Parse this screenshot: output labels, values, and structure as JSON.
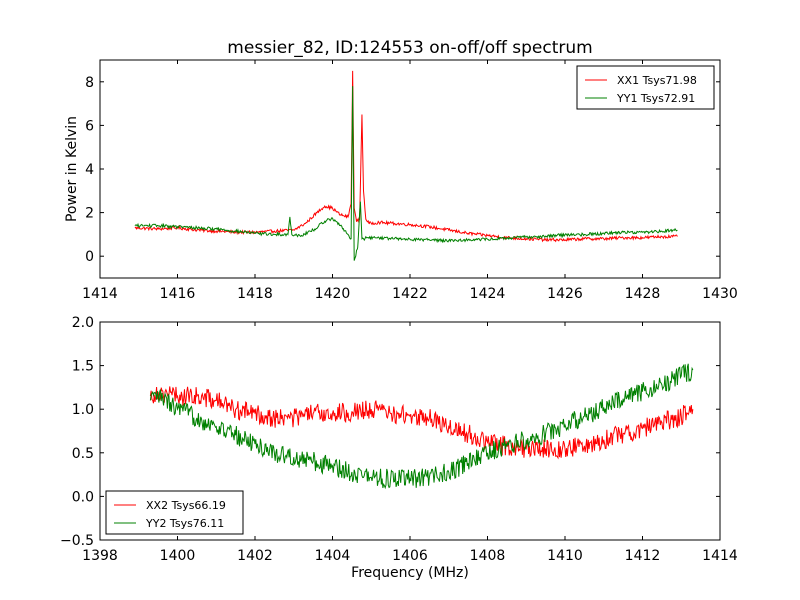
{
  "figure_title": "messier_82, ID:124553 on-off/off spectrum",
  "colors": {
    "xx": "#ff0000",
    "yy": "#008000"
  },
  "chart_data": [
    {
      "type": "line",
      "xlabel": "",
      "ylabel": "Power in Kelvin",
      "xlim": [
        1414,
        1430
      ],
      "ylim": [
        -1,
        9
      ],
      "xticks": [
        1414,
        1416,
        1418,
        1420,
        1422,
        1424,
        1426,
        1428,
        1430
      ],
      "yticks": [
        0,
        2,
        4,
        6,
        8
      ],
      "xtick_labels": [
        "1414",
        "1416",
        "1418",
        "1420",
        "1422",
        "1424",
        "1426",
        "1428",
        "1430"
      ],
      "ytick_labels": [
        "0",
        "2",
        "4",
        "6",
        "8"
      ],
      "legend_position": "top-right",
      "series": [
        {
          "name": "XX1 Tsys71.98",
          "color": "#ff0000",
          "x": [
            1414.9,
            1415.5,
            1416.0,
            1416.5,
            1417.0,
            1417.5,
            1418.0,
            1418.5,
            1419.0,
            1419.3,
            1419.6,
            1419.8,
            1420.0,
            1420.2,
            1420.4,
            1420.48,
            1420.52,
            1420.56,
            1420.62,
            1420.7,
            1420.76,
            1420.8,
            1420.86,
            1420.95,
            1421.2,
            1421.6,
            1422.0,
            1422.5,
            1423.0,
            1423.5,
            1424.0,
            1424.5,
            1425.0,
            1425.5,
            1426.0,
            1426.5,
            1427.0,
            1427.5,
            1428.0,
            1428.5,
            1428.9
          ],
          "values": [
            1.3,
            1.25,
            1.3,
            1.2,
            1.15,
            1.1,
            1.1,
            1.15,
            1.2,
            1.5,
            2.0,
            2.3,
            2.2,
            1.9,
            1.8,
            2.4,
            8.5,
            2.2,
            1.6,
            1.7,
            6.5,
            3.0,
            1.7,
            1.5,
            1.55,
            1.5,
            1.45,
            1.35,
            1.2,
            1.05,
            0.95,
            0.85,
            0.8,
            0.75,
            0.75,
            0.8,
            0.8,
            0.85,
            0.85,
            0.9,
            0.9
          ]
        },
        {
          "name": "YY1 Tsys72.91",
          "color": "#008000",
          "x": [
            1414.9,
            1415.5,
            1416.0,
            1416.5,
            1417.0,
            1417.5,
            1418.0,
            1418.5,
            1418.85,
            1418.9,
            1418.95,
            1419.2,
            1419.5,
            1419.8,
            1420.0,
            1420.2,
            1420.4,
            1420.48,
            1420.52,
            1420.56,
            1420.65,
            1420.72,
            1420.76,
            1420.8,
            1420.9,
            1421.2,
            1421.6,
            1422.0,
            1422.5,
            1423.0,
            1423.5,
            1424.0,
            1424.5,
            1425.0,
            1425.5,
            1426.0,
            1426.5,
            1427.0,
            1427.5,
            1428.0,
            1428.5,
            1428.9
          ],
          "values": [
            1.4,
            1.4,
            1.35,
            1.3,
            1.25,
            1.15,
            1.05,
            1.0,
            1.0,
            1.8,
            1.0,
            0.95,
            1.2,
            1.6,
            1.75,
            1.4,
            1.0,
            0.8,
            7.8,
            -0.2,
            0.4,
            2.5,
            0.8,
            0.8,
            0.85,
            0.85,
            0.8,
            0.78,
            0.75,
            0.72,
            0.75,
            0.78,
            0.82,
            0.88,
            0.92,
            0.98,
            1.0,
            1.05,
            1.1,
            1.1,
            1.15,
            1.2
          ]
        }
      ]
    },
    {
      "type": "line",
      "xlabel": "Frequency (MHz)",
      "ylabel": "",
      "xlim": [
        1398,
        1414
      ],
      "ylim": [
        -0.5,
        2.0
      ],
      "xticks": [
        1398,
        1400,
        1402,
        1404,
        1406,
        1408,
        1410,
        1412,
        1414
      ],
      "yticks": [
        -0.5,
        0.0,
        0.5,
        1.0,
        1.5,
        2.0
      ],
      "xtick_labels": [
        "1398",
        "1400",
        "1402",
        "1404",
        "1406",
        "1408",
        "1410",
        "1412",
        "1414"
      ],
      "ytick_labels": [
        "−0.5",
        "0.0",
        "0.5",
        "1.0",
        "1.5",
        "2.0"
      ],
      "legend_position": "bottom-left",
      "series": [
        {
          "name": "XX2 Tsys66.19",
          "color": "#ff0000",
          "x": [
            1399.3,
            1399.5,
            1400.0,
            1400.5,
            1401.0,
            1401.5,
            1402.0,
            1402.5,
            1403.0,
            1403.5,
            1404.0,
            1404.5,
            1405.0,
            1405.5,
            1406.0,
            1406.5,
            1407.0,
            1407.5,
            1408.0,
            1408.5,
            1409.0,
            1409.5,
            1410.0,
            1410.5,
            1411.0,
            1411.5,
            1412.0,
            1412.5,
            1413.0,
            1413.3
          ],
          "values": [
            1.15,
            1.2,
            1.15,
            1.15,
            1.1,
            1.0,
            0.95,
            0.9,
            0.9,
            0.95,
            0.95,
            0.97,
            1.0,
            0.95,
            0.92,
            0.9,
            0.8,
            0.72,
            0.62,
            0.58,
            0.55,
            0.55,
            0.55,
            0.58,
            0.65,
            0.72,
            0.78,
            0.85,
            0.92,
            1.0
          ]
        },
        {
          "name": "YY2 Tsys76.11",
          "color": "#008000",
          "x": [
            1399.3,
            1399.5,
            1400.0,
            1400.5,
            1401.0,
            1401.5,
            1402.0,
            1402.5,
            1403.0,
            1403.5,
            1404.0,
            1404.5,
            1405.0,
            1405.5,
            1406.0,
            1406.5,
            1407.0,
            1407.5,
            1408.0,
            1408.5,
            1409.0,
            1409.5,
            1410.0,
            1410.5,
            1411.0,
            1411.5,
            1412.0,
            1412.5,
            1413.0,
            1413.3
          ],
          "values": [
            1.1,
            1.15,
            1.0,
            0.9,
            0.8,
            0.7,
            0.6,
            0.5,
            0.45,
            0.4,
            0.35,
            0.28,
            0.22,
            0.2,
            0.2,
            0.22,
            0.28,
            0.38,
            0.5,
            0.58,
            0.65,
            0.72,
            0.82,
            0.92,
            1.02,
            1.12,
            1.2,
            1.28,
            1.38,
            1.45
          ]
        }
      ]
    }
  ]
}
